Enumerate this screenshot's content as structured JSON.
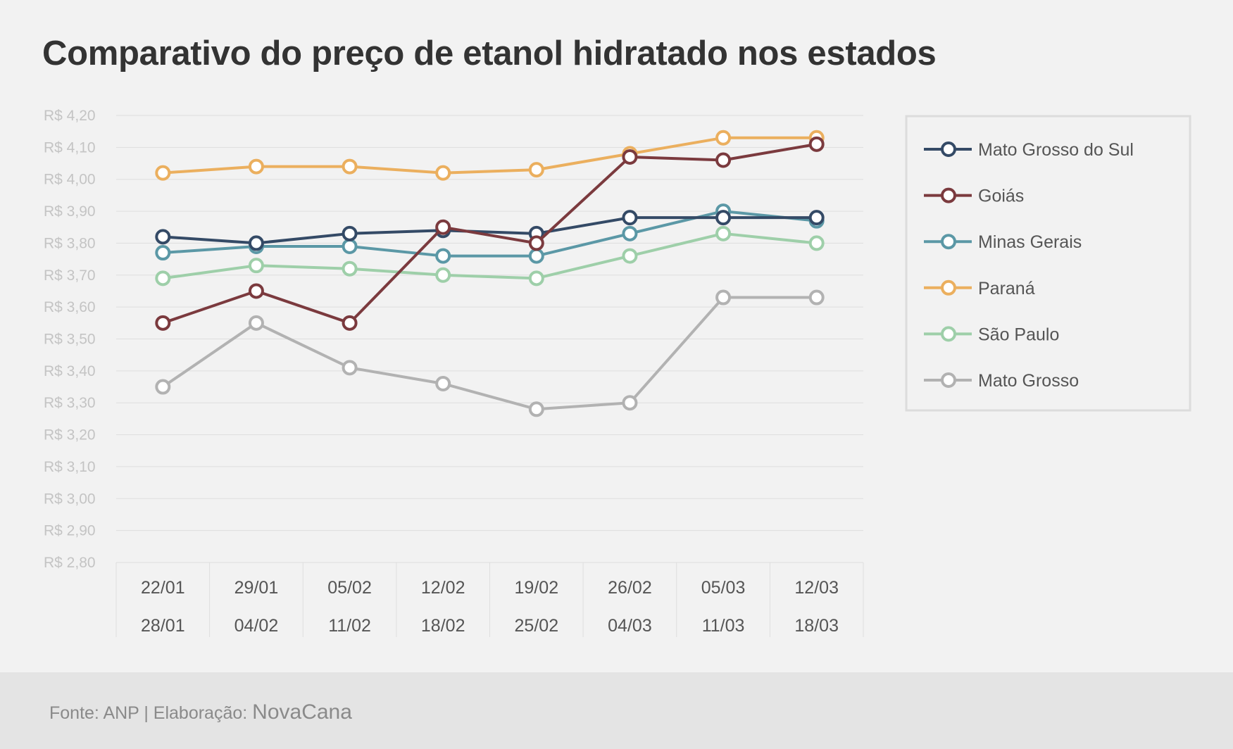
{
  "title": "Comparativo do preço de etanol hidratado nos estados",
  "footer": {
    "source": "Fonte: ANP | Elaboração: ",
    "brand": "NovaCana"
  },
  "chart_data": {
    "type": "line",
    "title": "Comparativo do preço de etanol hidratado nos estados",
    "xlabel": "",
    "ylabel": "",
    "categories": [
      [
        "22/01",
        "28/01"
      ],
      [
        "29/01",
        "04/02"
      ],
      [
        "05/02",
        "11/02"
      ],
      [
        "12/02",
        "18/02"
      ],
      [
        "19/02",
        "25/02"
      ],
      [
        "26/02",
        "04/03"
      ],
      [
        "05/03",
        "11/03"
      ],
      [
        "12/03",
        "18/03"
      ]
    ],
    "ylim": [
      2.8,
      4.2
    ],
    "ytick_values": [
      4.2,
      4.1,
      4.0,
      3.9,
      3.8,
      3.7,
      3.6,
      3.5,
      3.4,
      3.3,
      3.2,
      3.1,
      3.0,
      2.9,
      2.8
    ],
    "ytick_labels": [
      "R$ 4,20",
      "R$ 4,10",
      "R$ 4,00",
      "R$ 3,90",
      "R$ 3,80",
      "R$ 3,70",
      "R$ 3,60",
      "R$ 3,50",
      "R$ 3,40",
      "R$ 3,30",
      "R$ 3,20",
      "R$ 3,10",
      "R$ 3,00",
      "R$ 2,90",
      "R$ 2,80"
    ],
    "grid": true,
    "legend_position": "right",
    "series": [
      {
        "name": "Mato Grosso",
        "color": "#b2b2b2",
        "values": [
          3.35,
          3.55,
          3.41,
          3.36,
          3.28,
          3.3,
          3.63,
          3.63
        ]
      },
      {
        "name": "São Paulo",
        "color": "#9ecfa9",
        "values": [
          3.69,
          3.73,
          3.72,
          3.7,
          3.69,
          3.76,
          3.83,
          3.8
        ]
      },
      {
        "name": "Paraná",
        "color": "#ebaf5e",
        "values": [
          4.02,
          4.04,
          4.04,
          4.02,
          4.03,
          4.08,
          4.13,
          4.13
        ]
      },
      {
        "name": "Minas Gerais",
        "color": "#5b98a6",
        "values": [
          3.77,
          3.79,
          3.79,
          3.76,
          3.76,
          3.83,
          3.9,
          3.87
        ]
      },
      {
        "name": "Mato Grosso do Sul",
        "color": "#344a66",
        "values": [
          3.82,
          3.8,
          3.83,
          3.84,
          3.83,
          3.88,
          3.88,
          3.88
        ]
      },
      {
        "name": "Goiás",
        "color": "#7b3a3e",
        "values": [
          3.55,
          3.65,
          3.55,
          3.85,
          3.8,
          4.07,
          4.06,
          4.11
        ]
      }
    ],
    "legend_order": [
      "Mato Grosso do Sul",
      "Goiás",
      "Minas Gerais",
      "Paraná",
      "São Paulo",
      "Mato Grosso"
    ]
  }
}
